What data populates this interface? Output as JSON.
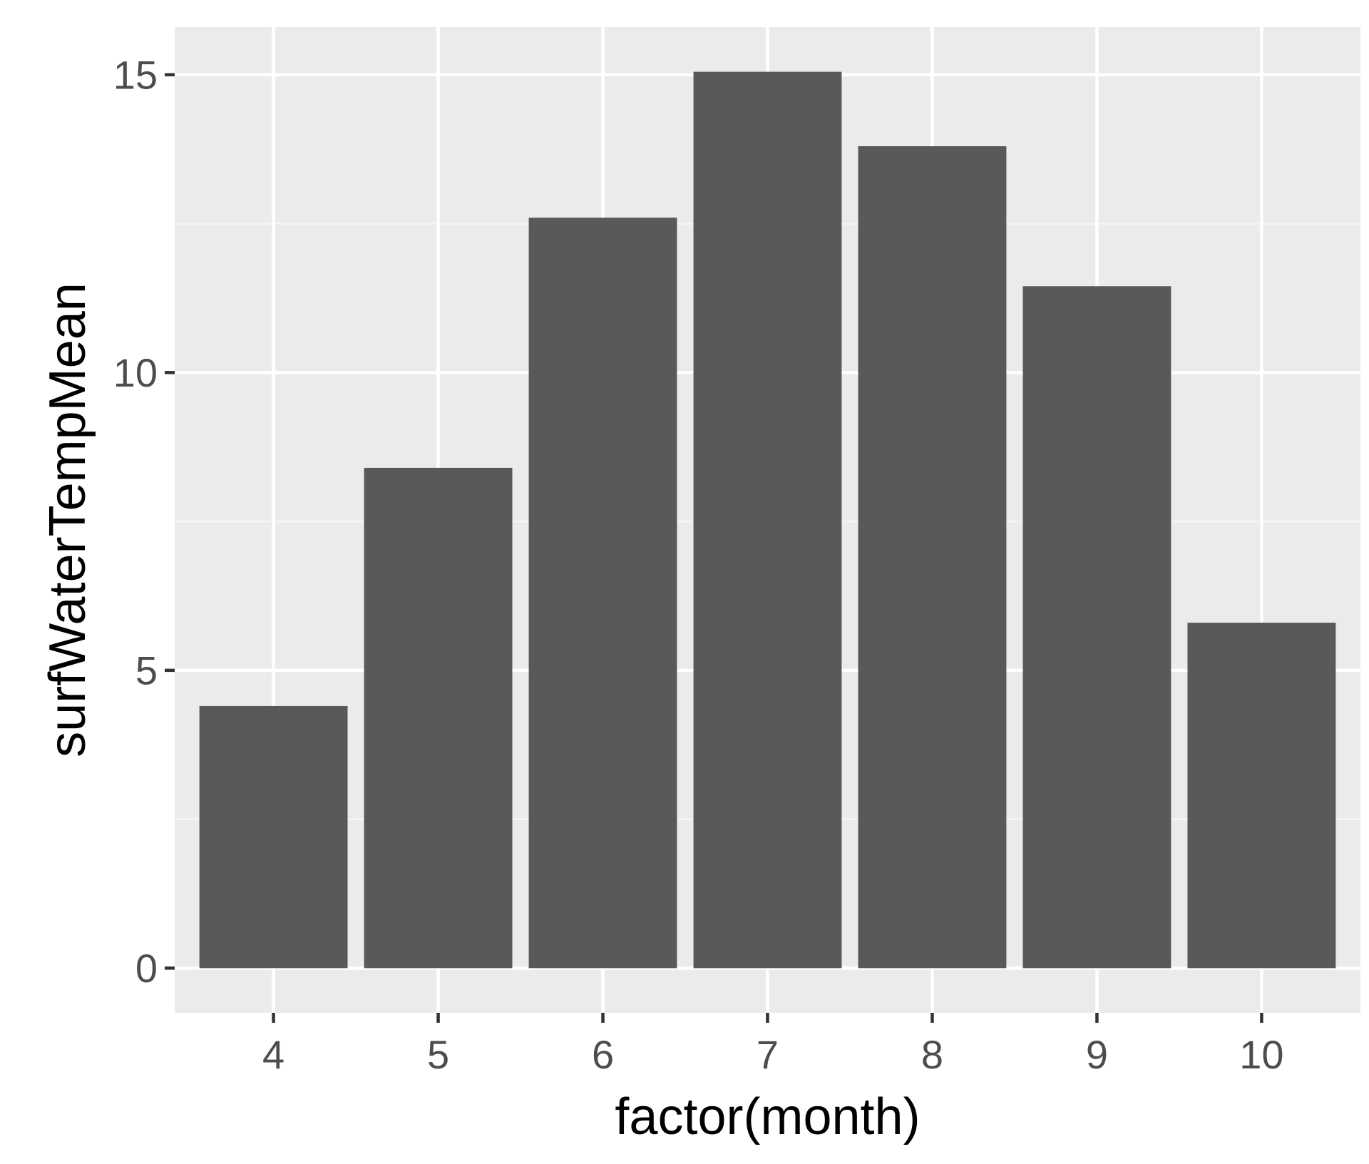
{
  "chart_data": {
    "type": "bar",
    "title": "",
    "xlabel": "factor(month)",
    "ylabel": "surfWaterTempMean",
    "categories": [
      "4",
      "5",
      "6",
      "7",
      "8",
      "9",
      "10"
    ],
    "values": [
      4.4,
      8.4,
      12.6,
      15.05,
      13.8,
      11.45,
      5.8
    ],
    "ylim": [
      -0.75,
      15.8
    ],
    "yticks": [
      0,
      5,
      10,
      15
    ],
    "ytick_labels": [
      "0",
      "5",
      "10",
      "15"
    ],
    "grid": true,
    "legend": "none"
  },
  "colors": {
    "panel_background": "#ebebeb",
    "grid_major": "#ffffff",
    "grid_minor": "#f5f5f5",
    "bar_fill": "#595959",
    "tick_text": "#4d4d4d",
    "tick_mark": "#333333",
    "title_text": "#000000"
  }
}
